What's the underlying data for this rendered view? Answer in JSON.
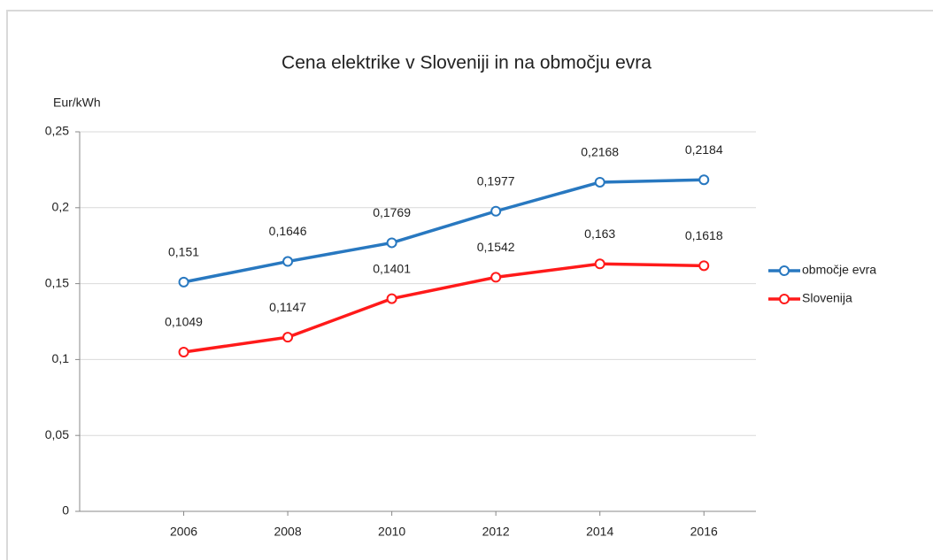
{
  "chart_data": {
    "type": "line",
    "title": "Cena elektrike v Sloveniji in na območju evra",
    "y_label": "Eur/kWh",
    "x": [
      2006,
      2008,
      2010,
      2012,
      2014,
      2016
    ],
    "xlim": [
      2004,
      2017
    ],
    "xticks": [
      2006,
      2008,
      2010,
      2012,
      2014,
      2016
    ],
    "ylim": [
      0,
      0.25
    ],
    "yticks": [
      {
        "value": 0,
        "label": "0"
      },
      {
        "value": 0.05,
        "label": "0,05"
      },
      {
        "value": 0.1,
        "label": "0,1"
      },
      {
        "value": 0.15,
        "label": "0,15"
      },
      {
        "value": 0.2,
        "label": "0,2"
      },
      {
        "value": 0.25,
        "label": "0,25"
      }
    ],
    "grid": true,
    "legend": "right",
    "series": [
      {
        "name": "območje evra",
        "color": "#2878c0",
        "values": [
          0.151,
          0.1646,
          0.1769,
          0.1977,
          0.2168,
          0.2184
        ],
        "value_labels": [
          "0,151",
          "0,1646",
          "0,1769",
          "0,1977",
          "0,2168",
          "0,2184"
        ]
      },
      {
        "name": "Slovenija",
        "color": "#ff1a1a",
        "values": [
          0.1049,
          0.1147,
          0.1401,
          0.1542,
          0.163,
          0.1618
        ],
        "value_labels": [
          "0,1049",
          "0,1147",
          "0,1401",
          "0,1542",
          "0,163",
          "0,1618"
        ]
      }
    ]
  }
}
